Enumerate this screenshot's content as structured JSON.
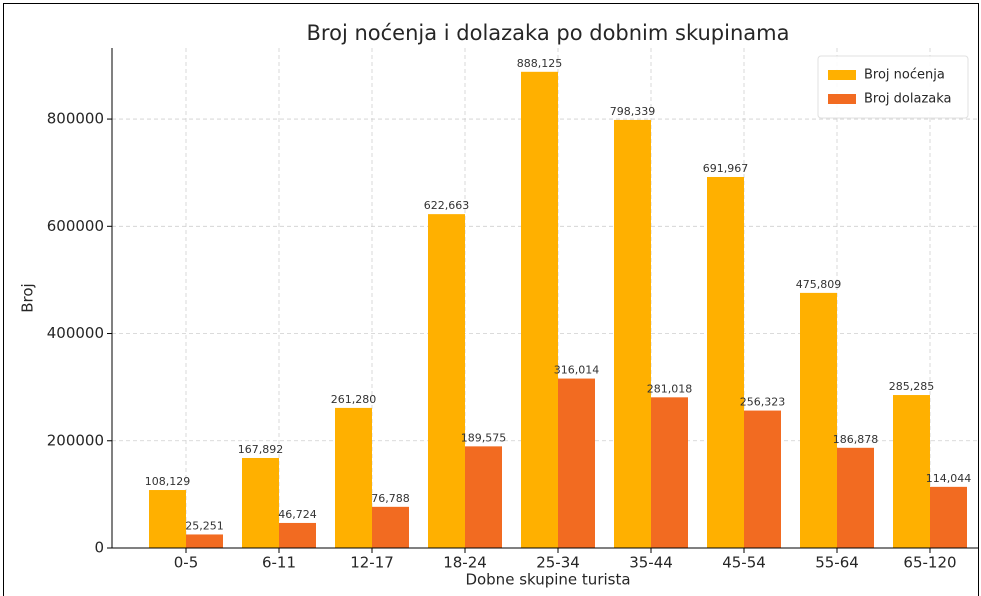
{
  "chart_data": {
    "type": "bar",
    "title": "Broj noćenja i dolazaka po dobnim skupinama",
    "x_label": "Dobne skupine turista",
    "y_label": "Broj",
    "categories": [
      "0-5",
      "6-11",
      "12-17",
      "18-24",
      "25-34",
      "35-44",
      "45-54",
      "55-64",
      "65-120"
    ],
    "series": [
      {
        "name": "Broj noćenja",
        "color": "#ffb000",
        "values": [
          108129,
          167892,
          261280,
          622663,
          888125,
          798339,
          691967,
          475809,
          285285
        ],
        "value_labels": [
          "108,129",
          "167,892",
          "261,280",
          "622,663",
          "888,125",
          "798,339",
          "691,967",
          "475,809",
          "285,285"
        ]
      },
      {
        "name": "Broj dolazaka",
        "color": "#f26b21",
        "values": [
          25251,
          46724,
          76788,
          189575,
          316014,
          281018,
          256323,
          186878,
          114044
        ],
        "value_labels": [
          "25,251",
          "46,724",
          "76,788",
          "189,575",
          "316,014",
          "281,018",
          "256,323",
          "186,878",
          "114,044"
        ]
      }
    ],
    "ylim": [
      0,
      932531
    ],
    "yticks": [
      0,
      200000,
      400000,
      600000,
      800000
    ],
    "grid": true,
    "legend": "upper right"
  }
}
